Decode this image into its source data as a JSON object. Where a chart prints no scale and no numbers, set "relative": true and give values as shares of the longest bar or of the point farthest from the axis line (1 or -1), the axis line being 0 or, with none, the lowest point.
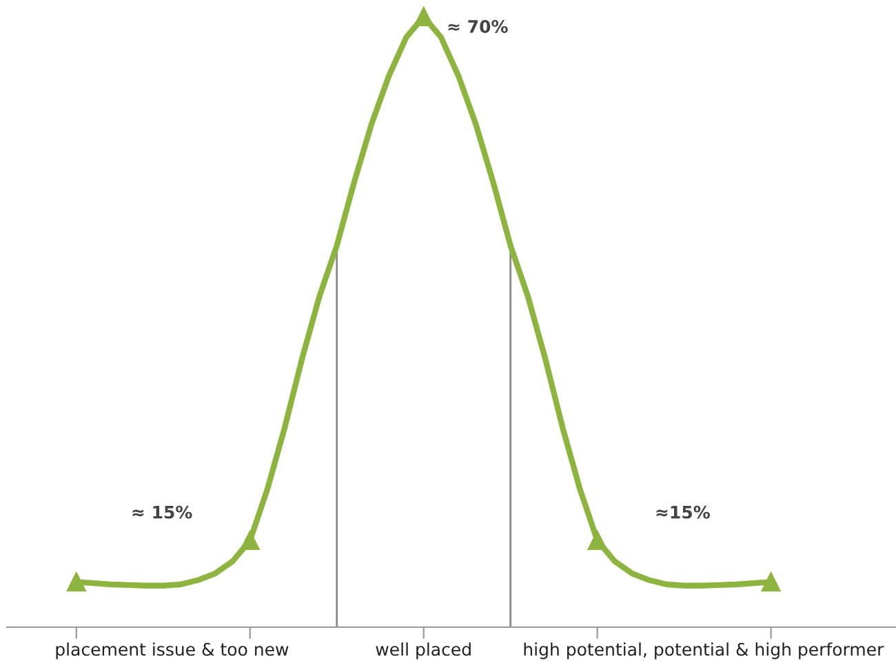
{
  "chart_data": {
    "type": "line",
    "relative": true,
    "categories": [
      null,
      null,
      null,
      null,
      null,
      null,
      null,
      null,
      null,
      null,
      null,
      null,
      null,
      null,
      null,
      null,
      null,
      null,
      null,
      null,
      null,
      null,
      null,
      null,
      null,
      null,
      null,
      null,
      null,
      null,
      null,
      null,
      null,
      null,
      null,
      null,
      null,
      null,
      null,
      null,
      null
    ],
    "series": [
      {
        "color": "#8db43e",
        "values": [
          0.074,
          0.072,
          0.07,
          0.069,
          0.068,
          0.068,
          0.07,
          0.077,
          0.088,
          0.108,
          0.142,
          0.226,
          0.327,
          0.44,
          0.542,
          0.625,
          0.729,
          0.824,
          0.903,
          0.966,
          1,
          0.966,
          0.903,
          0.824,
          0.729,
          0.625,
          0.542,
          0.44,
          0.327,
          0.226,
          0.142,
          0.108,
          0.088,
          0.077,
          0.07,
          0.068,
          0.068,
          0.069,
          0.07,
          0.072,
          0.074
        ]
      }
    ],
    "annotations": [
      "≈ 15%",
      "≈ 70%",
      "≈15%",
      "placement issue & too new",
      "well placed",
      "high potential, potential & high performer"
    ],
    "line_style": "solid"
  }
}
